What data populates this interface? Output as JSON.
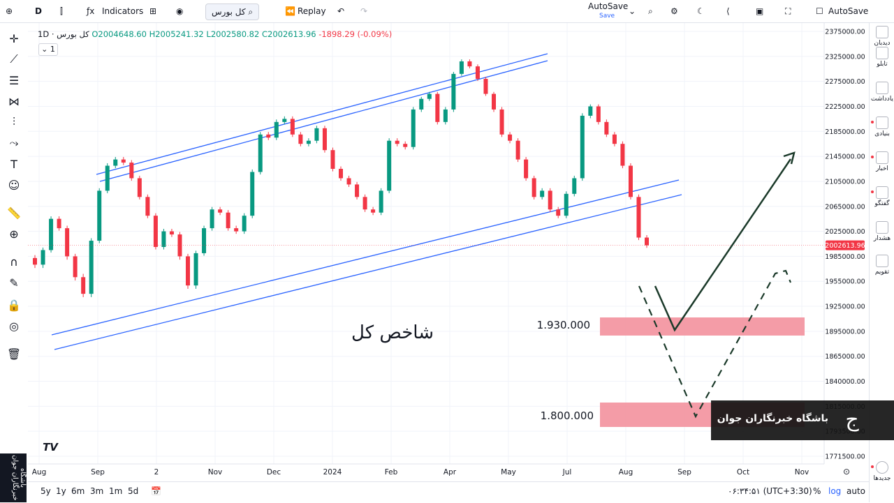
{
  "toolbar": {
    "interval": "D",
    "indicators": "Indicators",
    "symbol": "کل بورس",
    "replay": "Replay",
    "autosave_label": "AutoSave",
    "save_label": "Save",
    "autosave_right": "AutoSave"
  },
  "legend": {
    "title": "کل بورس · 1D",
    "open": "O2004648.60",
    "high": "H2005241.32",
    "low": "L2002580.82",
    "close": "C2002613.96",
    "change": "-1898.29 (-0.09%)",
    "pane_num": "1"
  },
  "right_panel": [
    {
      "label": "دیدبان"
    },
    {
      "label": "تابلو"
    },
    {
      "label": "یادداشت"
    },
    {
      "label": "بنیادی"
    },
    {
      "label": "اخبار"
    },
    {
      "label": "گفتگو"
    },
    {
      "label": "هشدار"
    },
    {
      "label": "تقویم"
    },
    {
      "label": "جدیدها"
    }
  ],
  "bottom": {
    "ranges": [
      "5y",
      "1y",
      "6m",
      "3m",
      "1m",
      "5d"
    ],
    "time": "۰۶:۳۴:۵۱ (UTC+3:30)",
    "pct": "%",
    "log": "log",
    "auto": "auto"
  },
  "annotations": {
    "main_label": "شاخص کل",
    "level1": "1.930.000",
    "level2": "1.800.000"
  },
  "banner": {
    "text": "باشگاه خبرنگاران جوان",
    "side_text": "باشگاه خبرنگاران جوان"
  },
  "colors": {
    "up": "#089981",
    "down": "#f23645",
    "channel": "#2962ff",
    "zone": "#f28b98",
    "arrow": "#1b3a2a"
  },
  "chart_data": {
    "type": "candlestick",
    "x_ticks": [
      "Aug",
      "Sep",
      "2",
      "Nov",
      "Dec",
      "2024",
      "Feb",
      "Apr",
      "May",
      "Jul",
      "Aug",
      "Sep",
      "Oct",
      "Nov"
    ],
    "y_ticks": [
      2375000,
      2325000,
      2275000,
      2225000,
      2185000,
      2145000,
      2105000,
      2065000,
      2025000,
      1985000,
      1955000,
      1925000,
      1895000,
      1865000,
      1840000,
      1815000,
      1793500,
      1771500
    ],
    "y_tick_labels": [
      "2375000.00",
      "2325000.00",
      "2275000.00",
      "2225000.00",
      "2185000.00",
      "2145000.00",
      "2105000.00",
      "2065000.00",
      "2025000.00",
      "1985000.00",
      "1955000.00",
      "1925000.00",
      "1895000.00",
      "1865000.00",
      "1840000.00",
      "1815000.00",
      "1793500.00",
      "1771500.00"
    ],
    "last_price": 2002613.96,
    "last_price_label": "2002613.96",
    "close_series": [
      1975000,
      1995000,
      2045000,
      2030000,
      1985000,
      1960000,
      1940000,
      2010000,
      2090000,
      2130000,
      2140000,
      2135000,
      2110000,
      2080000,
      2050000,
      2000000,
      2025000,
      2020000,
      1985000,
      1950000,
      1990000,
      2030000,
      2060000,
      2055000,
      2030000,
      2025000,
      2050000,
      2120000,
      2180000,
      2175000,
      2200000,
      2205000,
      2180000,
      2165000,
      2170000,
      2190000,
      2155000,
      2125000,
      2110000,
      2100000,
      2080000,
      2060000,
      2055000,
      2090000,
      2170000,
      2165000,
      2160000,
      2220000,
      2240000,
      2250000,
      2200000,
      2220000,
      2290000,
      2315000,
      2305000,
      2280000,
      2250000,
      2220000,
      2180000,
      2170000,
      2140000,
      2110000,
      2080000,
      2090000,
      2060000,
      2050000,
      2085000,
      2110000,
      2210000,
      2225000,
      2200000,
      2180000,
      2165000,
      2130000,
      2080000,
      2015000,
      2002614
    ],
    "ylim": [
      1760000,
      2390000
    ],
    "xlabel": "",
    "ylabel": ""
  }
}
